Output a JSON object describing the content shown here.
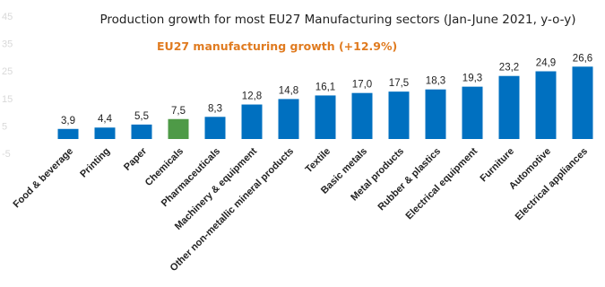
{
  "chart_data": {
    "type": "bar",
    "title": "Production growth for most EU27 Manufacturing sectors (Jan-June 2021, y-o-y)",
    "annotation": "EU27 manufacturing growth (+12.9%)",
    "categories": [
      "Food & beverage",
      "Printing",
      "Paper",
      "Chemicals",
      "Pharmaceuticals",
      "Machinery & equipment",
      "Other non-metallic mineral products",
      "Textile",
      "Basic metals",
      "Metal products",
      "Rubber & plastics",
      "Electrical equipment",
      "Furniture",
      "Automotive",
      "Electrical appliances"
    ],
    "values": [
      3.9,
      4.4,
      5.5,
      7.5,
      8.3,
      12.8,
      14.8,
      16.1,
      17.0,
      17.5,
      18.3,
      19.3,
      23.2,
      24.9,
      26.6
    ],
    "value_labels": [
      "3,9",
      "4,4",
      "5,5",
      "7,5",
      "8,3",
      "12,8",
      "14,8",
      "16,1",
      "17,0",
      "17,5",
      "18,3",
      "19,3",
      "23,2",
      "24,9",
      "26,6"
    ],
    "yticks": [
      -5,
      5,
      15,
      25,
      35,
      45
    ],
    "ylim": [
      -5,
      45
    ],
    "highlight_category": "Chemicals",
    "colors": {
      "bar": "#0070C0",
      "highlight": "#4E9A47",
      "annotation": "#E07B20",
      "tick": "#d9d9d9"
    },
    "grid": false,
    "legend": "none"
  }
}
